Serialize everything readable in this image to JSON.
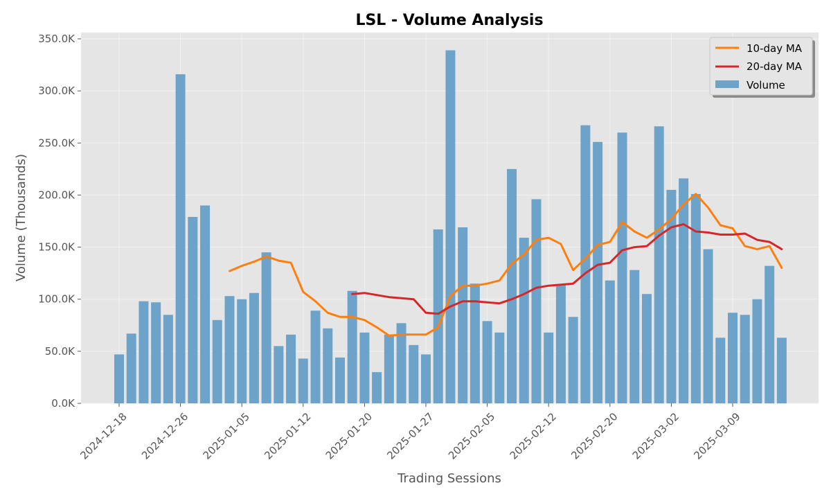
{
  "chart_data": {
    "type": "bar",
    "title": "LSL - Volume Analysis",
    "xlabel": "Trading Sessions",
    "ylabel": "Volume (Thousands)",
    "ylim": [
      0,
      356
    ],
    "y_ticks": [
      "0.0K",
      "50.0K",
      "100.0K",
      "150.0K",
      "200.0K",
      "250.0K",
      "300.0K",
      "350.0K"
    ],
    "y_tick_values": [
      0,
      50,
      100,
      150,
      200,
      250,
      300,
      350
    ],
    "x_ticks": [
      {
        "label": "2024-12-18",
        "index": 0
      },
      {
        "label": "2024-12-26",
        "index": 5
      },
      {
        "label": "2025-01-05",
        "index": 10
      },
      {
        "label": "2025-01-12",
        "index": 15
      },
      {
        "label": "2025-01-20",
        "index": 20
      },
      {
        "label": "2025-01-27",
        "index": 25
      },
      {
        "label": "2025-02-05",
        "index": 30
      },
      {
        "label": "2025-02-12",
        "index": 35
      },
      {
        "label": "2025-02-20",
        "index": 40
      },
      {
        "label": "2025-03-02",
        "index": 45
      },
      {
        "label": "2025-03-09",
        "index": 50
      }
    ],
    "grid": true,
    "legend_position": "top-right",
    "series": [
      {
        "name": "Volume",
        "kind": "bar",
        "color": "#6ea3c9",
        "values": [
          47,
          67,
          98,
          97,
          85,
          316,
          179,
          190,
          80,
          103,
          100,
          106,
          145,
          55,
          66,
          43,
          89,
          72,
          44,
          108,
          68,
          30,
          66,
          77,
          56,
          47,
          167,
          339,
          169,
          115,
          79,
          68,
          225,
          159,
          196,
          68,
          114,
          83,
          267,
          251,
          118,
          260,
          128,
          105,
          266,
          205,
          216,
          201,
          148,
          63,
          87,
          85,
          100,
          132,
          63
        ]
      },
      {
        "name": "10-day MA",
        "kind": "line",
        "color": "#ff7f0e",
        "values": [
          null,
          null,
          null,
          null,
          null,
          null,
          null,
          null,
          null,
          127,
          132,
          136,
          141,
          137,
          135,
          107,
          98,
          87,
          83,
          83,
          80,
          73,
          65,
          66,
          66,
          66,
          73,
          103,
          113,
          113,
          115,
          118,
          134,
          143,
          157,
          159,
          153,
          128,
          139,
          152,
          155,
          174,
          165,
          159,
          167,
          177,
          191,
          201,
          188,
          171,
          168,
          151,
          148,
          151,
          130
        ]
      },
      {
        "name": "20-day MA",
        "kind": "line",
        "color": "#d62728",
        "values": [
          null,
          null,
          null,
          null,
          null,
          null,
          null,
          null,
          null,
          null,
          null,
          null,
          null,
          null,
          null,
          null,
          null,
          null,
          null,
          105,
          106,
          104,
          102,
          101,
          100,
          87,
          86,
          93,
          98,
          98,
          97,
          96,
          100,
          105,
          111,
          113,
          114,
          115,
          125,
          133,
          135,
          147,
          150,
          151,
          161,
          169,
          172,
          165,
          164,
          162,
          162,
          163,
          157,
          155,
          148
        ]
      }
    ]
  }
}
